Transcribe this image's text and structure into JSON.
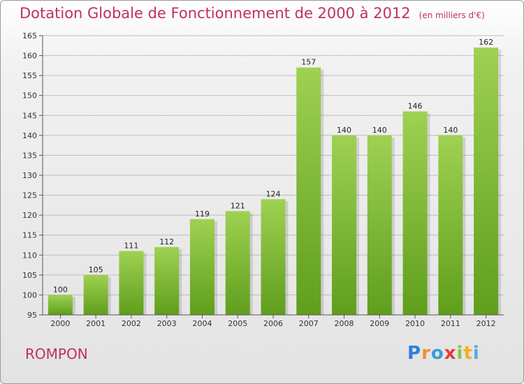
{
  "title": "Dotation Globale de Fonctionnement de 2000 à 2012",
  "subtitle": "(en milliers d'€)",
  "commune": "ROMPON",
  "logo_text": "Proxiti",
  "colors": {
    "title": "#c0305f",
    "bar_top": "#9fd152",
    "bar_bottom": "#5f9e1c"
  },
  "chart_data": {
    "type": "bar",
    "categories": [
      "2000",
      "2001",
      "2002",
      "2003",
      "2004",
      "2005",
      "2006",
      "2007",
      "2008",
      "2009",
      "2010",
      "2011",
      "2012"
    ],
    "values": [
      100,
      105,
      111,
      112,
      119,
      121,
      124,
      157,
      140,
      140,
      146,
      140,
      162
    ],
    "xlabel": "",
    "ylabel": "",
    "ylim": [
      95,
      165
    ],
    "yticks": [
      95,
      100,
      105,
      110,
      115,
      120,
      125,
      130,
      135,
      140,
      145,
      150,
      155,
      160,
      165
    ],
    "grid": true
  }
}
